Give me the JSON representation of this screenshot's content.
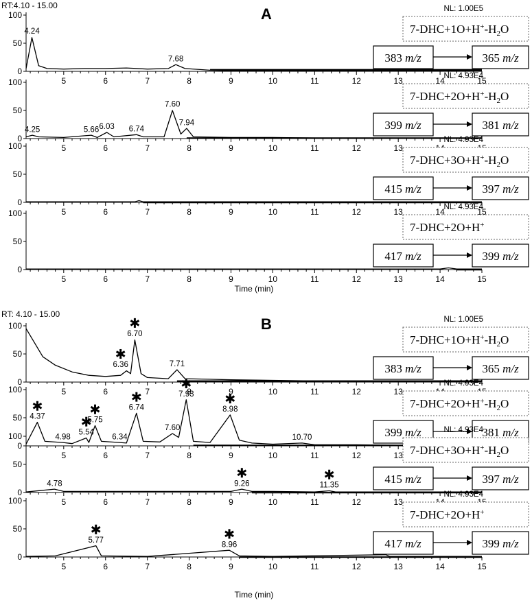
{
  "chart_data": [
    {
      "type": "line",
      "panel_label": "A",
      "rt_label": "RT:4.10 - 15.00",
      "xlabel": "Time (min)",
      "xlim": [
        4.1,
        15.0
      ],
      "xticks": [
        5,
        6,
        7,
        8,
        9,
        10,
        11,
        12,
        13,
        14,
        15
      ],
      "ylim": [
        0,
        100
      ],
      "yticks": [
        0,
        50,
        100
      ],
      "traces": [
        {
          "nl": "NL: 1.00E5",
          "formula": {
            "base": "7-DHC+1O+H",
            "sup": "+",
            "tail": "-H",
            "sub": "2",
            "end": "O"
          },
          "precursor": {
            "num": "383",
            "unit": "m/z"
          },
          "product": {
            "num": "365",
            "unit": "m/z"
          },
          "baseline": 4,
          "points": [
            [
              4.1,
              5
            ],
            [
              4.24,
              60
            ],
            [
              4.4,
              10
            ],
            [
              4.6,
              5
            ],
            [
              5,
              4
            ],
            [
              5.5,
              5
            ],
            [
              6,
              5
            ],
            [
              6.5,
              6
            ],
            [
              7,
              4
            ],
            [
              7.5,
              5
            ],
            [
              7.68,
              12
            ],
            [
              7.9,
              5
            ],
            [
              8.5,
              2
            ],
            [
              9,
              1
            ],
            [
              10,
              1
            ],
            [
              11,
              1
            ],
            [
              12,
              1
            ],
            [
              13,
              1
            ],
            [
              14,
              1
            ],
            [
              15,
              1
            ]
          ],
          "peaks": [
            {
              "x": 4.24,
              "y": 62,
              "label": "4.24",
              "star": false
            },
            {
              "x": 7.68,
              "y": 13,
              "label": "7.68",
              "star": false
            }
          ]
        },
        {
          "nl": "NL: 4.93E4",
          "formula": {
            "base": "7-DHC+2O+H",
            "sup": "+",
            "tail": "-H",
            "sub": "2",
            "end": "O"
          },
          "precursor": {
            "num": "399",
            "unit": "m/z"
          },
          "product": {
            "num": "381",
            "unit": "m/z"
          },
          "baseline": 2,
          "points": [
            [
              4.1,
              3
            ],
            [
              4.25,
              6
            ],
            [
              4.4,
              3
            ],
            [
              5,
              2
            ],
            [
              5.66,
              6
            ],
            [
              5.8,
              2
            ],
            [
              6.03,
              11
            ],
            [
              6.2,
              3
            ],
            [
              6.74,
              7
            ],
            [
              6.9,
              3
            ],
            [
              7.4,
              3
            ],
            [
              7.6,
              50
            ],
            [
              7.8,
              8
            ],
            [
              7.94,
              18
            ],
            [
              8.1,
              3
            ],
            [
              9,
              2
            ],
            [
              10,
              2
            ],
            [
              11,
              1
            ],
            [
              12,
              1
            ],
            [
              13,
              1
            ],
            [
              14,
              1
            ],
            [
              15,
              1
            ]
          ],
          "peaks": [
            {
              "x": 4.25,
              "y": 7,
              "label": "4.25",
              "star": false
            },
            {
              "x": 5.66,
              "y": 7,
              "label": "5.66",
              "star": false
            },
            {
              "x": 6.03,
              "y": 12,
              "label": "6.03",
              "star": false
            },
            {
              "x": 6.74,
              "y": 8,
              "label": "6.74",
              "star": false
            },
            {
              "x": 7.6,
              "y": 52,
              "label": "7.60",
              "star": false
            },
            {
              "x": 7.94,
              "y": 19,
              "label": "7.94",
              "star": false
            }
          ]
        },
        {
          "nl": "NL: 4.93E4",
          "formula": {
            "base": "7-DHC+3O+H",
            "sup": "+",
            "tail": "-H",
            "sub": "2",
            "end": "O"
          },
          "precursor": {
            "num": "415",
            "unit": "m/z"
          },
          "product": {
            "num": "397",
            "unit": "m/z"
          },
          "baseline": 1,
          "points": [
            [
              4.1,
              1
            ],
            [
              6.7,
              1
            ],
            [
              6.8,
              3
            ],
            [
              6.9,
              1
            ],
            [
              15,
              1
            ]
          ],
          "peaks": []
        },
        {
          "nl": "NL: 4.93E4",
          "formula": {
            "base": "7-DHC+2O+H",
            "sup": "+",
            "tail": "",
            "sub": "",
            "end": ""
          },
          "precursor": {
            "num": "417",
            "unit": "m/z"
          },
          "product": {
            "num": "399",
            "unit": "m/z"
          },
          "baseline": 1,
          "points": [
            [
              4.1,
              1
            ],
            [
              14,
              1
            ],
            [
              14.2,
              3
            ],
            [
              14.4,
              1
            ],
            [
              15,
              1
            ]
          ],
          "peaks": []
        }
      ]
    },
    {
      "type": "line",
      "panel_label": "B",
      "rt_label": "RT:  4.10 - 15.00",
      "xlabel": "Time (min)",
      "xlim": [
        4.1,
        15.0
      ],
      "xticks": [
        5,
        6,
        7,
        8,
        9,
        10,
        11,
        12,
        13,
        14,
        15
      ],
      "ylim": [
        0,
        100
      ],
      "yticks": [
        0,
        50,
        100
      ],
      "traces": [
        {
          "nl": "NL: 1.00E5",
          "formula": {
            "base": "7-DHC+1O+H",
            "sup": "+",
            "tail": "-H",
            "sub": "2",
            "end": "O"
          },
          "precursor": {
            "num": "383",
            "unit": "m/z"
          },
          "product": {
            "num": "365",
            "unit": "m/z"
          },
          "baseline": 3,
          "points": [
            [
              4.1,
              95
            ],
            [
              4.3,
              70
            ],
            [
              4.5,
              45
            ],
            [
              4.8,
              30
            ],
            [
              5.2,
              18
            ],
            [
              5.6,
              12
            ],
            [
              6,
              10
            ],
            [
              6.36,
              12
            ],
            [
              6.5,
              20
            ],
            [
              6.6,
              15
            ],
            [
              6.7,
              75
            ],
            [
              6.85,
              15
            ],
            [
              7,
              8
            ],
            [
              7.5,
              6
            ],
            [
              7.71,
              22
            ],
            [
              7.9,
              6
            ],
            [
              8.5,
              5
            ],
            [
              9,
              4
            ],
            [
              10,
              3
            ],
            [
              11,
              2
            ],
            [
              12,
              2
            ],
            [
              13,
              2
            ],
            [
              14,
              1
            ],
            [
              15,
              1
            ]
          ],
          "peaks": [
            {
              "x": 6.36,
              "y": 22,
              "label": "6.36",
              "star": true
            },
            {
              "x": 6.7,
              "y": 77,
              "label": "6.70",
              "star": true
            },
            {
              "x": 7.71,
              "y": 23,
              "label": "7.71",
              "star": false
            }
          ]
        },
        {
          "nl": "NL: 4.93E4",
          "formula": {
            "base": "7-DHC+2O+H",
            "sup": "+",
            "tail": "-H",
            "sub": "2",
            "end": "O"
          },
          "precursor": {
            "num": "399",
            "unit": "m/z"
          },
          "product": {
            "num": "381",
            "unit": "m/z"
          },
          "baseline": 2,
          "points": [
            [
              4.1,
              3
            ],
            [
              4.37,
              42
            ],
            [
              4.55,
              8
            ],
            [
              4.98,
              6
            ],
            [
              5.2,
              4
            ],
            [
              5.54,
              14
            ],
            [
              5.6,
              6
            ],
            [
              5.75,
              36
            ],
            [
              5.9,
              8
            ],
            [
              6.34,
              6
            ],
            [
              6.5,
              5
            ],
            [
              6.74,
              58
            ],
            [
              6.9,
              8
            ],
            [
              7.3,
              7
            ],
            [
              7.6,
              22
            ],
            [
              7.75,
              15
            ],
            [
              7.93,
              82
            ],
            [
              8.1,
              8
            ],
            [
              8.5,
              6
            ],
            [
              8.98,
              55
            ],
            [
              9.2,
              10
            ],
            [
              9.5,
              5
            ],
            [
              10,
              3
            ],
            [
              10.7,
              5
            ],
            [
              11,
              2
            ],
            [
              12,
              2
            ],
            [
              13,
              1
            ],
            [
              14,
              1
            ],
            [
              15,
              1
            ]
          ],
          "peaks": [
            {
              "x": 4.37,
              "y": 43,
              "label": "4.37",
              "star": true
            },
            {
              "x": 4.98,
              "y": 7,
              "label": "4.98",
              "star": false
            },
            {
              "x": 5.54,
              "y": 15,
              "label": "5.54",
              "star": true
            },
            {
              "x": 5.75,
              "y": 37,
              "label": "5.75",
              "star": true
            },
            {
              "x": 6.34,
              "y": 7,
              "label": "6.34",
              "star": false
            },
            {
              "x": 6.74,
              "y": 59,
              "label": "6.74",
              "star": true
            },
            {
              "x": 7.6,
              "y": 23,
              "label": "7.60",
              "star": false
            },
            {
              "x": 7.93,
              "y": 83,
              "label": "7.93",
              "star": true
            },
            {
              "x": 8.98,
              "y": 56,
              "label": "8.98",
              "star": true
            },
            {
              "x": 10.7,
              "y": 6,
              "label": "10.70",
              "star": false
            }
          ]
        },
        {
          "nl": "NL: 4.93E4",
          "formula": {
            "base": "7-DHC+3O+H",
            "sup": "+",
            "tail": "-H",
            "sub": "2",
            "end": "O"
          },
          "precursor": {
            "num": "415",
            "unit": "m/z"
          },
          "product": {
            "num": "397",
            "unit": "m/z"
          },
          "baseline": 1,
          "points": [
            [
              4.1,
              1
            ],
            [
              4.78,
              6
            ],
            [
              5,
              2
            ],
            [
              6,
              2
            ],
            [
              7,
              2
            ],
            [
              8,
              2
            ],
            [
              9,
              2
            ],
            [
              9.26,
              6
            ],
            [
              9.5,
              2
            ],
            [
              10,
              2
            ],
            [
              11,
              1
            ],
            [
              11.35,
              3
            ],
            [
              11.5,
              1
            ],
            [
              15,
              1
            ]
          ],
          "peaks": [
            {
              "x": 4.78,
              "y": 7,
              "label": "4.78",
              "star": false
            },
            {
              "x": 9.26,
              "y": 7,
              "label": "9.26",
              "star": true
            },
            {
              "x": 11.35,
              "y": 4,
              "label": "11.35",
              "star": true
            }
          ]
        },
        {
          "nl": "NL: 4.93E4",
          "formula": {
            "base": "7-DHC+2O+H",
            "sup": "+",
            "tail": "",
            "sub": "",
            "end": ""
          },
          "precursor": {
            "num": "417",
            "unit": "m/z"
          },
          "product": {
            "num": "399",
            "unit": "m/z"
          },
          "baseline": 1,
          "points": [
            [
              4.1,
              1
            ],
            [
              4.8,
              2
            ],
            [
              5.77,
              20
            ],
            [
              5.9,
              2
            ],
            [
              7,
              1
            ],
            [
              8.96,
              12
            ],
            [
              9.2,
              2
            ],
            [
              10,
              1
            ],
            [
              12.7,
              4
            ],
            [
              12.8,
              1
            ],
            [
              15,
              1
            ]
          ],
          "peaks": [
            {
              "x": 5.77,
              "y": 21,
              "label": "5.77",
              "star": true
            },
            {
              "x": 8.96,
              "y": 13,
              "label": "8.96",
              "star": true
            }
          ]
        }
      ]
    }
  ]
}
